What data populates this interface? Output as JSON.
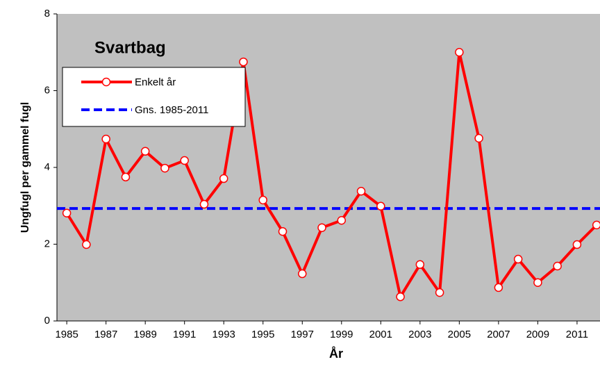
{
  "chart_data": {
    "type": "line",
    "title": "Svartbag",
    "x_label": "År",
    "y_label": "Ungfugl per gammel fugl",
    "x": [
      1985,
      1986,
      1987,
      1988,
      1989,
      1990,
      1991,
      1992,
      1993,
      1994,
      1995,
      1996,
      1997,
      1998,
      1999,
      2000,
      2001,
      2002,
      2003,
      2004,
      2005,
      2006,
      2007,
      2008,
      2009,
      2010,
      2011,
      2012
    ],
    "series": [
      {
        "name": "Enkelt år",
        "color": "#ff0000",
        "values": [
          2.81,
          1.99,
          4.74,
          3.75,
          4.42,
          3.98,
          4.18,
          3.04,
          3.71,
          6.75,
          3.15,
          2.33,
          1.23,
          2.43,
          2.62,
          3.38,
          2.99,
          0.63,
          1.47,
          0.74,
          7.0,
          4.76,
          0.87,
          1.61,
          1.0,
          1.43,
          1.99,
          2.5
        ]
      }
    ],
    "reference_line": {
      "name": "Gns. 1985-2011",
      "color": "#0000ff",
      "value": 2.93
    },
    "xlim": [
      1984.5,
      2012.17
    ],
    "xticks": [
      1985,
      1987,
      1989,
      1991,
      1993,
      1995,
      1997,
      1999,
      2001,
      2003,
      2005,
      2007,
      2009,
      2011
    ],
    "ylim": [
      0,
      8
    ],
    "yticks": [
      0,
      2,
      4,
      6,
      8
    ],
    "plot_background": "#c0c0c0"
  }
}
